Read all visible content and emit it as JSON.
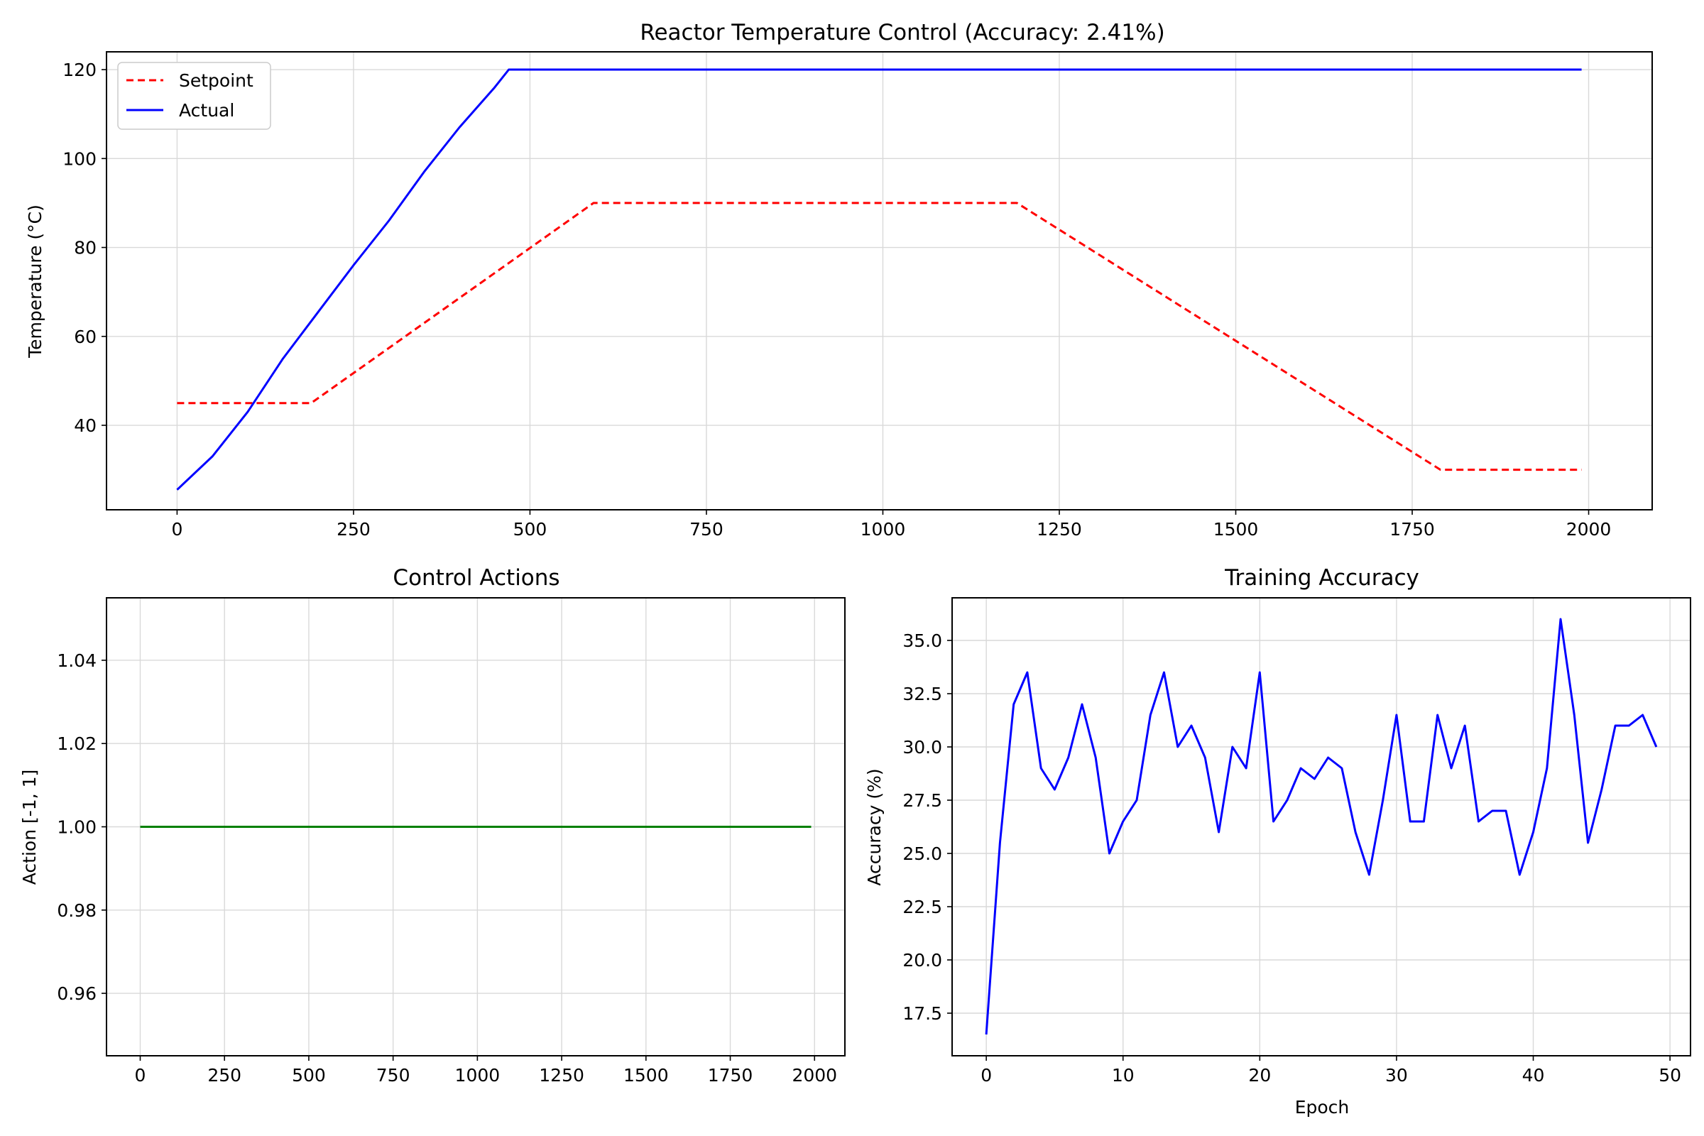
{
  "chart_data": [
    {
      "type": "line",
      "title": "Reactor Temperature Control (Accuracy: 2.41%)",
      "xlabel": "",
      "ylabel": "Temperature (°C)",
      "xlim": [
        -100,
        2090
      ],
      "ylim": [
        21,
        124
      ],
      "xticks": [
        0,
        250,
        500,
        750,
        1000,
        1250,
        1500,
        1750,
        2000
      ],
      "yticks": [
        40,
        60,
        80,
        100,
        120
      ],
      "grid": true,
      "legend_position": "top-left",
      "series": [
        {
          "name": "Setpoint",
          "color": "#ff0000",
          "dashed": true,
          "x": [
            0,
            190,
            590,
            1190,
            1790,
            1990
          ],
          "y": [
            45,
            45,
            90,
            90,
            30,
            30
          ]
        },
        {
          "name": "Actual",
          "color": "#0000ff",
          "dashed": false,
          "x": [
            0,
            50,
            100,
            150,
            200,
            250,
            300,
            350,
            400,
            450,
            470,
            500,
            1000,
            1500,
            1990
          ],
          "y": [
            25.5,
            33,
            43,
            55,
            65.5,
            76,
            86,
            97,
            107,
            116,
            120,
            120,
            120,
            120,
            120
          ]
        }
      ]
    },
    {
      "type": "line",
      "title": "Control Actions",
      "xlabel": "",
      "ylabel": "Action [-1, 1]",
      "xlim": [
        -100,
        2090
      ],
      "ylim": [
        0.945,
        1.055
      ],
      "xticks": [
        0,
        250,
        500,
        750,
        1000,
        1250,
        1500,
        1750,
        2000
      ],
      "yticks": [
        0.96,
        0.98,
        1.0,
        1.02,
        1.04
      ],
      "ytick_labels": [
        "0.96",
        "0.98",
        "1.00",
        "1.02",
        "1.04"
      ],
      "grid": true,
      "series": [
        {
          "color": "#008000",
          "x": [
            0,
            1990
          ],
          "y": [
            1.0,
            1.0
          ]
        }
      ]
    },
    {
      "type": "line",
      "title": "Training Accuracy",
      "xlabel": "Epoch",
      "ylabel": "Accuracy (%)",
      "xlim": [
        -2.5,
        51.5
      ],
      "ylim": [
        15.5,
        37
      ],
      "xticks": [
        0,
        10,
        20,
        30,
        40,
        50
      ],
      "yticks": [
        17.5,
        20.0,
        22.5,
        25.0,
        27.5,
        30.0,
        32.5,
        35.0
      ],
      "ytick_labels": [
        "17.5",
        "20.0",
        "22.5",
        "25.0",
        "27.5",
        "30.0",
        "32.5",
        "35.0"
      ],
      "grid": true,
      "series": [
        {
          "color": "#0000ff",
          "x": [
            0,
            1,
            2,
            3,
            4,
            5,
            6,
            7,
            8,
            9,
            10,
            11,
            12,
            13,
            14,
            15,
            16,
            17,
            18,
            19,
            20,
            21,
            22,
            23,
            24,
            25,
            26,
            27,
            28,
            29,
            30,
            31,
            32,
            33,
            34,
            35,
            36,
            37,
            38,
            39,
            40,
            41,
            42,
            43,
            44,
            45,
            46,
            47,
            48,
            49
          ],
          "y": [
            16.5,
            25.5,
            32,
            33.5,
            29,
            28,
            29.5,
            32,
            29.5,
            25,
            26.5,
            27.5,
            31.5,
            33.5,
            30,
            31,
            29.5,
            26,
            30,
            29,
            33.5,
            26.5,
            27.5,
            29,
            28.5,
            29.5,
            29,
            26,
            24,
            27.5,
            31.5,
            26.5,
            26.5,
            31.5,
            29,
            31,
            26.5,
            27,
            27,
            24,
            26,
            29,
            36,
            31.5,
            25.5,
            28,
            31,
            31,
            31.5,
            30
          ]
        }
      ]
    }
  ]
}
